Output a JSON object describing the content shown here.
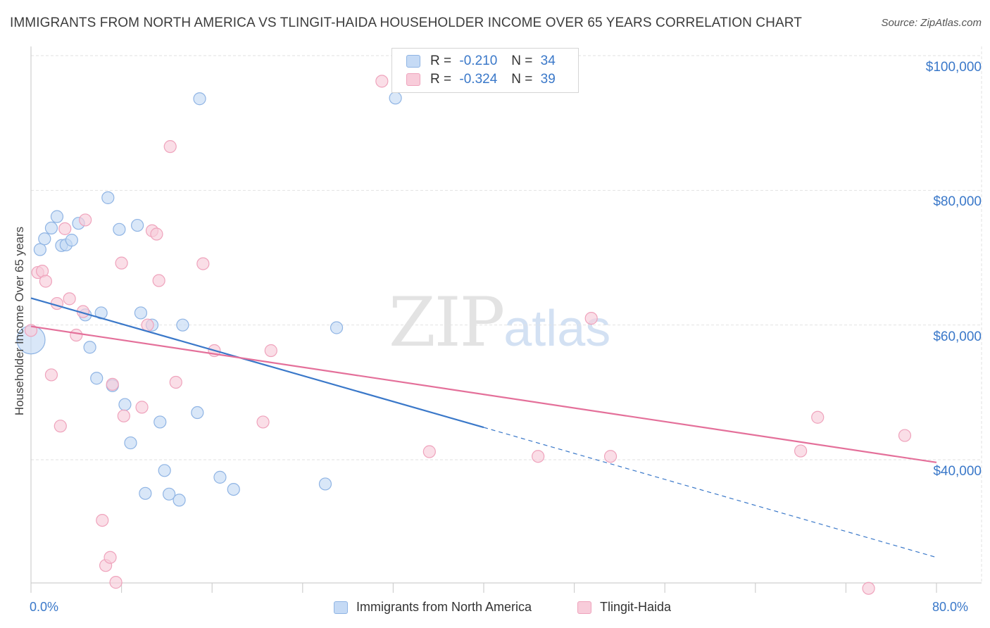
{
  "title": "IMMIGRANTS FROM NORTH AMERICA VS TLINGIT-HAIDA HOUSEHOLDER INCOME OVER 65 YEARS CORRELATION CHART",
  "source": "Source: ZipAtlas.com",
  "watermark": {
    "zip": "ZIP",
    "atlas": "atlas"
  },
  "legend": {
    "rows": [
      {
        "r_key": "R =",
        "r_val": "-0.210",
        "n_key": "N =",
        "n_val": "34"
      },
      {
        "r_key": "R =",
        "r_val": "-0.324",
        "n_key": "N =",
        "n_val": "39"
      }
    ]
  },
  "colors": {
    "blue": "#3a78c9",
    "blue_fill": "#c5daf5",
    "blue_stroke": "#8fb4e4",
    "pink": "#e4709a",
    "pink_fill": "#f8ccda",
    "pink_stroke": "#efa3bc"
  },
  "chart_data": {
    "type": "scatter",
    "title": "IMMIGRANTS FROM NORTH AMERICA VS TLINGIT-HAIDA HOUSEHOLDER INCOME OVER 65 YEARS CORRELATION CHART",
    "xlabel": "",
    "ylabel": "Householder Income Over 65 years",
    "xlim": [
      0,
      0.8
    ],
    "ylim": [
      20000,
      102000
    ],
    "y_ticks": [
      40000,
      60000,
      80000,
      100000
    ],
    "y_tick_labels": [
      "$40,000",
      "$60,000",
      "$80,000",
      "$100,000"
    ],
    "x_tick_labels": [
      "0.0%",
      "80.0%"
    ],
    "grid": true,
    "series": [
      {
        "name": "Immigrants from North America",
        "color": "#3a78c9",
        "points": [
          [
            0.0,
            57800
          ],
          [
            0.008,
            71200
          ],
          [
            0.012,
            72800
          ],
          [
            0.018,
            74400
          ],
          [
            0.023,
            76100
          ],
          [
            0.027,
            71800
          ],
          [
            0.031,
            71900
          ],
          [
            0.036,
            72600
          ],
          [
            0.042,
            75100
          ],
          [
            0.048,
            61500
          ],
          [
            0.052,
            56700
          ],
          [
            0.058,
            52100
          ],
          [
            0.062,
            61800
          ],
          [
            0.068,
            78900
          ],
          [
            0.072,
            51000
          ],
          [
            0.078,
            74200
          ],
          [
            0.083,
            48200
          ],
          [
            0.088,
            42500
          ],
          [
            0.094,
            74800
          ],
          [
            0.097,
            61800
          ],
          [
            0.101,
            35000
          ],
          [
            0.107,
            60000
          ],
          [
            0.114,
            45600
          ],
          [
            0.118,
            38400
          ],
          [
            0.122,
            34900
          ],
          [
            0.131,
            34000
          ],
          [
            0.134,
            60000
          ],
          [
            0.147,
            47000
          ],
          [
            0.149,
            93600
          ],
          [
            0.167,
            37400
          ],
          [
            0.179,
            35600
          ],
          [
            0.26,
            36400
          ],
          [
            0.27,
            59600
          ],
          [
            0.322,
            93700
          ]
        ],
        "trend": {
          "x0": 0.0,
          "y0": 64000,
          "x1": 0.4,
          "y1": 44800,
          "dash_to_x": 0.8,
          "dash_to_y": 25500
        }
      },
      {
        "name": "Tlingit-Haida",
        "color": "#e4709a",
        "points": [
          [
            0.0,
            59200
          ],
          [
            0.006,
            67800
          ],
          [
            0.01,
            68000
          ],
          [
            0.013,
            66500
          ],
          [
            0.018,
            52600
          ],
          [
            0.023,
            63200
          ],
          [
            0.026,
            45000
          ],
          [
            0.03,
            74300
          ],
          [
            0.034,
            63900
          ],
          [
            0.04,
            58500
          ],
          [
            0.046,
            62000
          ],
          [
            0.048,
            75600
          ],
          [
            0.063,
            31000
          ],
          [
            0.066,
            24300
          ],
          [
            0.07,
            25500
          ],
          [
            0.072,
            51200
          ],
          [
            0.075,
            21800
          ],
          [
            0.08,
            69200
          ],
          [
            0.082,
            46500
          ],
          [
            0.098,
            47800
          ],
          [
            0.103,
            60000
          ],
          [
            0.107,
            74000
          ],
          [
            0.111,
            73500
          ],
          [
            0.113,
            66600
          ],
          [
            0.123,
            86500
          ],
          [
            0.128,
            51500
          ],
          [
            0.152,
            69100
          ],
          [
            0.162,
            56200
          ],
          [
            0.205,
            45600
          ],
          [
            0.212,
            56200
          ],
          [
            0.31,
            96200
          ],
          [
            0.352,
            41200
          ],
          [
            0.448,
            40500
          ],
          [
            0.495,
            61000
          ],
          [
            0.512,
            40500
          ],
          [
            0.68,
            41300
          ],
          [
            0.695,
            46300
          ],
          [
            0.74,
            20900
          ],
          [
            0.772,
            43600
          ]
        ],
        "trend": {
          "x0": 0.0,
          "y0": 59800,
          "x1": 0.8,
          "y1": 39600
        }
      }
    ]
  }
}
